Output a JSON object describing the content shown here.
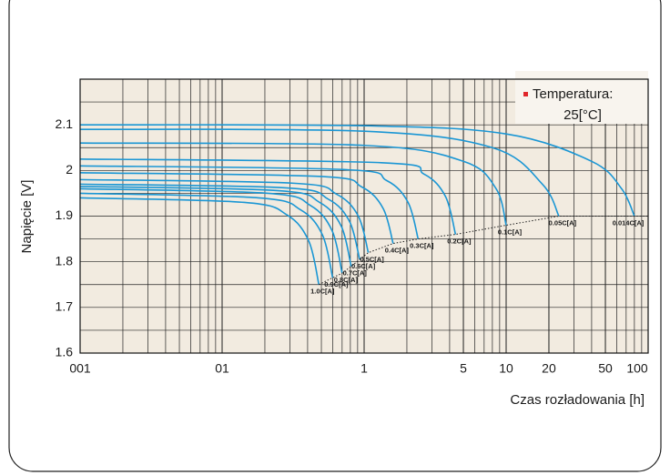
{
  "chart_data": {
    "type": "line",
    "y_label": "Napięcie [V]",
    "x_label": "Czas rozładowania [h]",
    "log_x": true,
    "grid": true,
    "color": "#1a96d4",
    "legend": {
      "title": "Temperatura:",
      "text": "25[°C]",
      "marker_color": "#e0262b",
      "position": "upper right"
    },
    "xlim": [
      0.01,
      100
    ],
    "ylim": [
      1.6,
      2.2
    ],
    "xticks": [
      {
        "value": 0.01,
        "label": "001"
      },
      {
        "value": 0.1,
        "label": "01"
      },
      1,
      5,
      10,
      20,
      50,
      100
    ],
    "yticks": [
      1.6,
      1.7,
      1.8,
      1.9,
      2.0,
      2.1
    ],
    "series": [
      {
        "name": "1.0C[A]",
        "x": [
          0.01,
          0.144,
          0.288,
          0.408,
          0.48
        ],
        "values": [
          1.94,
          1.93,
          1.902,
          1.845,
          1.75
        ]
      },
      {
        "name": "0.9C[A]",
        "x": [
          0.01,
          0.18,
          0.36,
          0.51,
          0.6
        ],
        "values": [
          1.95,
          1.94,
          1.913,
          1.858,
          1.765
        ]
      },
      {
        "name": "0.8C[A]",
        "x": [
          0.01,
          0.21,
          0.42,
          0.595,
          0.7
        ],
        "values": [
          1.96,
          1.95,
          1.923,
          1.868,
          1.775
        ]
      },
      {
        "name": "0.7C[A]",
        "x": [
          0.01,
          0.243,
          0.486,
          0.69,
          0.81
        ],
        "values": [
          1.965,
          1.956,
          1.93,
          1.878,
          1.79
        ]
      },
      {
        "name": "0.6C[A]",
        "x": [
          0.01,
          0.28,
          0.56,
          0.79,
          0.93
        ],
        "values": [
          1.97,
          1.962,
          1.937,
          1.888,
          1.805
        ]
      },
      {
        "name": "0.5C[A]",
        "x": [
          0.01,
          0.32,
          0.64,
          0.91,
          1.07
        ],
        "values": [
          1.98,
          1.972,
          1.948,
          1.9,
          1.82
        ]
      },
      {
        "name": "0.4C[A]",
        "x": [
          0.01,
          0.48,
          0.96,
          1.36,
          1.6
        ],
        "values": [
          1.995,
          1.987,
          1.964,
          1.917,
          1.84
        ]
      },
      {
        "name": "0.3C[A]",
        "x": [
          0.01,
          0.72,
          1.44,
          2.04,
          2.4
        ],
        "values": [
          2.01,
          2.002,
          1.978,
          1.93,
          1.85
        ]
      },
      {
        "name": "0.2C[A]",
        "x": [
          0.01,
          1.32,
          2.64,
          3.74,
          4.4
        ],
        "values": [
          2.025,
          2.017,
          1.992,
          1.943,
          1.86
        ]
      },
      {
        "name": "0.1C[A]",
        "x": [
          0.01,
          1,
          5,
          8.5,
          10
        ],
        "values": [
          2.06,
          2.055,
          2.02,
          1.96,
          1.88
        ]
      },
      {
        "name": "0.05C[A]",
        "x": [
          0.01,
          1,
          8,
          18,
          23.5
        ],
        "values": [
          2.09,
          2.086,
          2.05,
          1.97,
          1.9
        ]
      },
      {
        "name": "0.014C[A]",
        "x": [
          0.01,
          1,
          10,
          40,
          65,
          80
        ],
        "values": [
          2.1,
          2.098,
          2.08,
          2.02,
          1.96,
          1.9
        ]
      }
    ]
  }
}
